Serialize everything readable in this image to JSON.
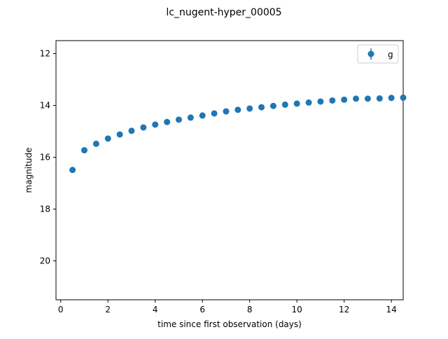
{
  "chart_data": {
    "type": "scatter",
    "title": "lc_nugent-hyper_00005",
    "xlabel": "time since first observation (days)",
    "ylabel": "magnitude",
    "xlim": [
      -0.2,
      14.5
    ],
    "ylim": [
      21.5,
      11.5
    ],
    "y_inverted": true,
    "x_ticks": [
      0,
      2,
      4,
      6,
      8,
      10,
      12,
      14
    ],
    "y_ticks": [
      12,
      14,
      16,
      18,
      20
    ],
    "grid": false,
    "legend_position": "top-right",
    "series": [
      {
        "name": "g",
        "color": "#1f77b4",
        "marker": "circle",
        "x": [
          0.5,
          1.0,
          1.5,
          2.0,
          2.5,
          3.0,
          3.5,
          4.0,
          4.5,
          5.0,
          5.5,
          6.0,
          6.5,
          7.0,
          7.5,
          8.0,
          8.5,
          9.0,
          9.5,
          10.0,
          10.5,
          11.0,
          11.5,
          12.0,
          12.5,
          13.0,
          13.5,
          14.0,
          14.5
        ],
        "y": [
          16.49,
          15.73,
          15.48,
          15.28,
          15.12,
          14.98,
          14.85,
          14.74,
          14.64,
          14.55,
          14.47,
          14.39,
          14.31,
          14.23,
          14.17,
          14.12,
          14.07,
          14.02,
          13.97,
          13.93,
          13.89,
          13.85,
          13.81,
          13.78,
          13.74,
          13.74,
          13.73,
          13.71,
          13.7
        ]
      }
    ]
  }
}
